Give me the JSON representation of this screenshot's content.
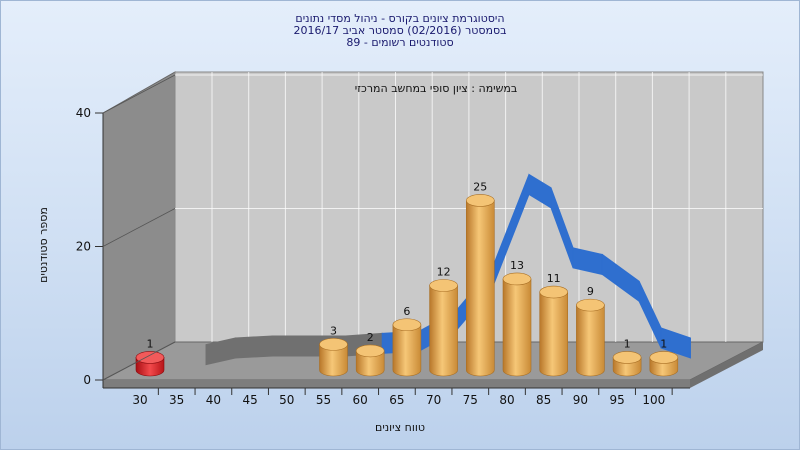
{
  "chart_data": {
    "type": "bar",
    "title_lines": [
      "היסטוגרמת ציונים בקורס - ניהול מסדי נתונים",
      "בסמסטר  (02/2016)  סמסטר אביב 2016/17",
      "סטודנטים רשומים - 89"
    ],
    "annotation": "במשימה : ציון סופי במחשב המרכזי",
    "xlabel": "טווח ציונים",
    "ylabel": "מספר סטודנטים",
    "x_ticks": [
      "30",
      "35",
      "40",
      "45",
      "50",
      "55",
      "60",
      "65",
      "70",
      "75",
      "80",
      "85",
      "90",
      "95",
      "100"
    ],
    "y_ticks": [
      "0",
      "20",
      "40"
    ],
    "ylim": [
      0,
      40
    ],
    "grid": true,
    "bars": [
      {
        "x": 30,
        "value": 1,
        "label": "1",
        "color": "#e0262a"
      },
      {
        "x": 55,
        "value": 3,
        "label": "3",
        "color": "#e8a448"
      },
      {
        "x": 60,
        "value": 2,
        "label": "2",
        "color": "#e8a448"
      },
      {
        "x": 65,
        "value": 6,
        "label": "6",
        "color": "#e8a448"
      },
      {
        "x": 70,
        "value": 12,
        "label": "12",
        "color": "#e8a448"
      },
      {
        "x": 75,
        "value": 25,
        "label": "25",
        "color": "#e8a448"
      },
      {
        "x": 80,
        "value": 13,
        "label": "13",
        "color": "#e8a448"
      },
      {
        "x": 85,
        "value": 11,
        "label": "11",
        "color": "#e8a448"
      },
      {
        "x": 90,
        "value": 9,
        "label": "9",
        "color": "#e8a448"
      },
      {
        "x": 95,
        "value": 1,
        "label": "1",
        "color": "#e8a448"
      },
      {
        "x": 100,
        "value": 1,
        "label": "1",
        "color": "#e8a448"
      }
    ],
    "curve": {
      "x": [
        36,
        40,
        45,
        50,
        55,
        60,
        65,
        70,
        75,
        80,
        83,
        86,
        90,
        95,
        98,
        102
      ],
      "y": [
        0.5,
        1.5,
        1.8,
        1.8,
        1.8,
        2.2,
        2.5,
        5.5,
        12,
        26,
        24,
        15,
        14,
        10,
        3,
        1.5
      ],
      "color_front": "#2f6fcf",
      "color_back": "#707070"
    },
    "colors": {
      "back_wall": "#c9c9c9",
      "side_wall": "#8c8c8c",
      "floor": "#9a9a9a"
    }
  }
}
